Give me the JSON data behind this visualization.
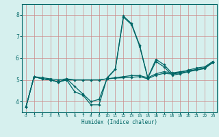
{
  "xlabel": "Humidex (Indice chaleur)",
  "bg_color": "#d6f0ee",
  "grid_color": "#cc8888",
  "line_color": "#006666",
  "axis_color": "#006666",
  "xlim": [
    -0.5,
    23.5
  ],
  "ylim": [
    3.5,
    8.5
  ],
  "yticks": [
    4,
    5,
    6,
    7,
    8
  ],
  "xticks": [
    0,
    1,
    2,
    3,
    4,
    5,
    6,
    7,
    8,
    9,
    10,
    11,
    12,
    13,
    14,
    15,
    16,
    17,
    18,
    19,
    20,
    21,
    22,
    23
  ],
  "lines": [
    {
      "x": [
        0,
        1,
        2,
        3,
        4,
        5,
        6,
        7,
        8,
        9,
        10,
        11,
        12,
        13,
        14,
        15,
        16,
        17,
        18,
        19,
        20,
        21,
        22,
        23
      ],
      "y": [
        3.75,
        5.15,
        5.05,
        5.0,
        4.9,
        5.0,
        4.45,
        4.3,
        3.85,
        3.85,
        5.1,
        5.5,
        7.95,
        7.6,
        6.6,
        5.1,
        5.95,
        5.7,
        5.3,
        5.35,
        5.45,
        5.55,
        5.6,
        5.85
      ]
    },
    {
      "x": [
        0,
        1,
        2,
        3,
        4,
        5,
        6,
        7,
        8,
        9,
        10,
        11,
        12,
        13,
        14,
        15,
        16,
        17,
        18,
        19,
        20,
        21,
        22,
        23
      ],
      "y": [
        3.75,
        5.15,
        5.05,
        5.0,
        4.9,
        5.05,
        4.7,
        4.35,
        4.0,
        4.1,
        5.08,
        5.48,
        7.9,
        7.55,
        6.55,
        5.08,
        5.85,
        5.6,
        5.22,
        5.28,
        5.38,
        5.48,
        5.55,
        5.8
      ]
    },
    {
      "x": [
        0,
        1,
        2,
        3,
        4,
        5,
        6,
        7,
        8,
        9,
        10,
        11,
        12,
        13,
        14,
        15,
        16,
        17,
        18,
        19,
        20,
        21,
        22,
        23
      ],
      "y": [
        3.75,
        5.15,
        5.1,
        5.05,
        5.0,
        5.05,
        5.0,
        5.0,
        5.0,
        5.0,
        5.05,
        5.1,
        5.15,
        5.2,
        5.2,
        5.1,
        5.28,
        5.38,
        5.32,
        5.38,
        5.42,
        5.48,
        5.55,
        5.82
      ]
    },
    {
      "x": [
        0,
        1,
        2,
        3,
        4,
        5,
        6,
        7,
        8,
        9,
        10,
        11,
        12,
        13,
        14,
        15,
        16,
        17,
        18,
        19,
        20,
        21,
        22,
        23
      ],
      "y": [
        3.75,
        5.15,
        5.05,
        5.0,
        4.9,
        5.0,
        5.0,
        5.0,
        5.0,
        5.0,
        5.05,
        5.08,
        5.1,
        5.12,
        5.15,
        5.05,
        5.22,
        5.3,
        5.27,
        5.32,
        5.38,
        5.45,
        5.52,
        5.8
      ]
    }
  ]
}
